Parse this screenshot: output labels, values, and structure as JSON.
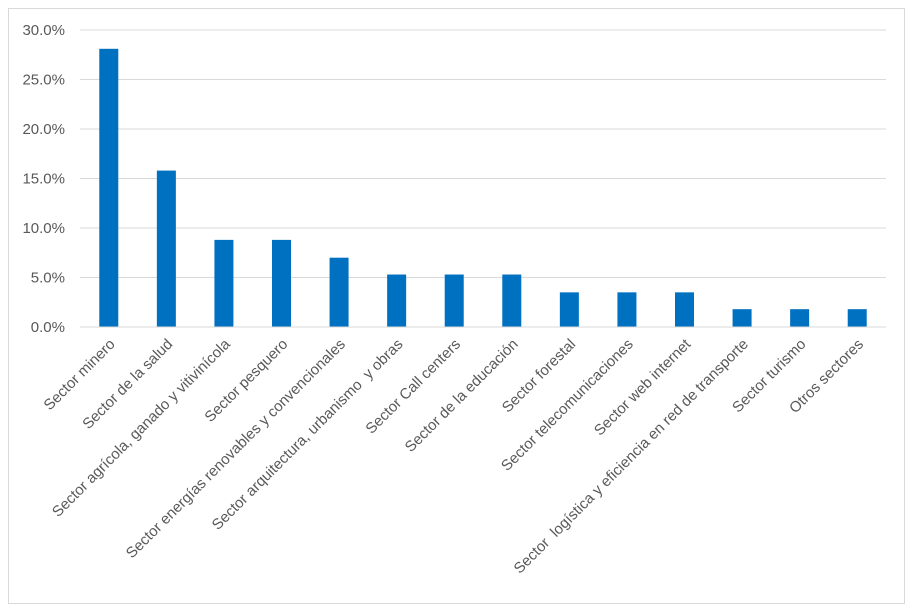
{
  "chart_data": {
    "type": "bar",
    "title": "",
    "xlabel": "",
    "ylabel": "",
    "ylim": [
      0,
      30
    ],
    "y_tick_format": "percent_1dp",
    "y_ticks": [
      "0.0%",
      "5.0%",
      "10.0%",
      "15.0%",
      "20.0%",
      "25.0%",
      "30.0%"
    ],
    "grid": true,
    "legend": "none",
    "bar_color": "#0070C0",
    "categories": [
      "Sector minero",
      "Sector de la salud",
      "Sector agrícola, ganado y vitivinícola",
      "Sector pesquero",
      "Sector energías renovables y convencionales",
      "Sector arquitectura, urbanismo  y obras",
      "Sector Call centers",
      "Sector de la educación",
      "Sector forestal",
      "Sector telecomunicaciones",
      "Sector web internet",
      "Sector  logística y eficiencia en red de transporte",
      "Sector turismo",
      "Otros sectores"
    ],
    "values": [
      28.1,
      15.8,
      8.8,
      8.8,
      7.0,
      5.3,
      5.3,
      5.3,
      3.5,
      3.5,
      3.5,
      1.8,
      1.8,
      1.8
    ]
  }
}
